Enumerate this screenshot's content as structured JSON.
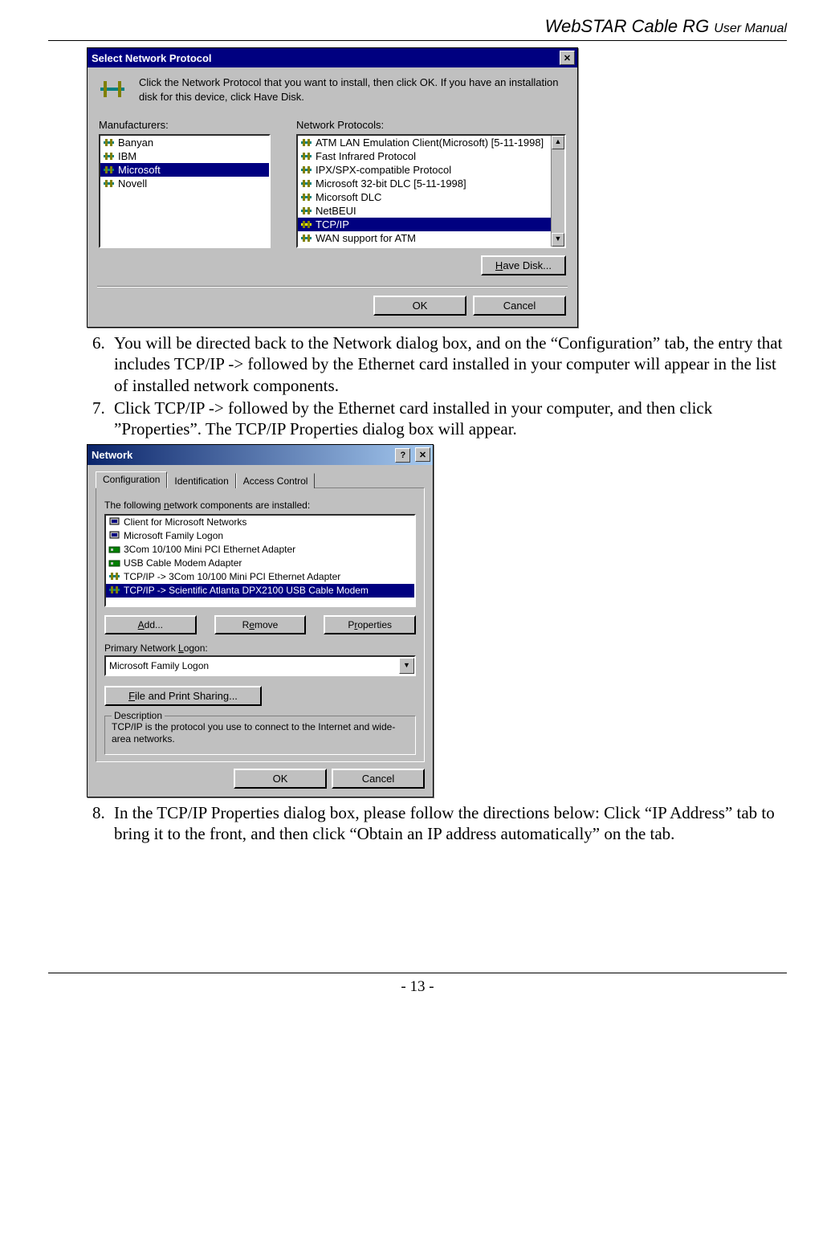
{
  "header": {
    "title_big": "WebSTAR Cable RG ",
    "title_small": "User Manual"
  },
  "footer": {
    "page": "- 13 -"
  },
  "dialog1": {
    "title": "Select Network Protocol",
    "msg": "Click the Network Protocol that you want to install, then click OK. If you have an installation disk for this device, click Have Disk.",
    "manuf_label": "Manufacturers:",
    "proto_label": "Network Protocols:",
    "manufacturers": [
      "Banyan",
      "IBM",
      "Microsoft",
      "Novell"
    ],
    "manuf_selected": 2,
    "protocols": [
      "ATM LAN Emulation Client(Microsoft) [5-11-1998]",
      "Fast Infrared Protocol",
      "IPX/SPX-compatible Protocol",
      "Microsoft 32-bit DLC       [5-11-1998]",
      "Micorsoft DLC",
      "NetBEUI",
      "TCP/IP",
      "WAN support for ATM"
    ],
    "proto_selected": 6,
    "have_disk": "Have Disk...",
    "ok": "OK",
    "cancel": "Cancel"
  },
  "step6": "You will be directed back to the Network dialog box, and on the “Configuration” tab, the entry that includes TCP/IP -> followed by the Ethernet card installed in your computer will appear in the list of installed network components.",
  "step7": "Click TCP/IP -> followed by the Ethernet card installed in your computer, and then click ”Properties”. The TCP/IP Properties dialog box will appear.",
  "dialog2": {
    "title": "Network",
    "tabs": [
      "Configuration",
      "Identification",
      "Access Control"
    ],
    "list_label": "The following network components are installed:",
    "components": [
      "Client for Microsoft Networks",
      "Microsoft Family Logon",
      "3Com 10/100 Mini PCI Ethernet Adapter",
      "USB Cable Modem Adapter",
      "TCP/IP -> 3Com 10/100 Mini PCI Ethernet Adapter",
      "TCP/IP -> Scientific Atlanta DPX2100 USB Cable Modem"
    ],
    "comp_selected": 5,
    "add": "Add...",
    "remove": "Remove",
    "properties": "Properties",
    "logon_label": "Primary Network Logon:",
    "logon_value": "Microsoft Family Logon",
    "fps": "File and Print Sharing...",
    "desc_label": "Description",
    "desc_text": "TCP/IP is the protocol you use to connect to the Internet and wide-area networks.",
    "ok": "OK",
    "cancel": "Cancel"
  },
  "step8": "In the TCP/IP Properties dialog box, please follow the directions below: Click “IP Address” tab to bring it to the front, and then click “Obtain an IP address automatically” on the tab."
}
